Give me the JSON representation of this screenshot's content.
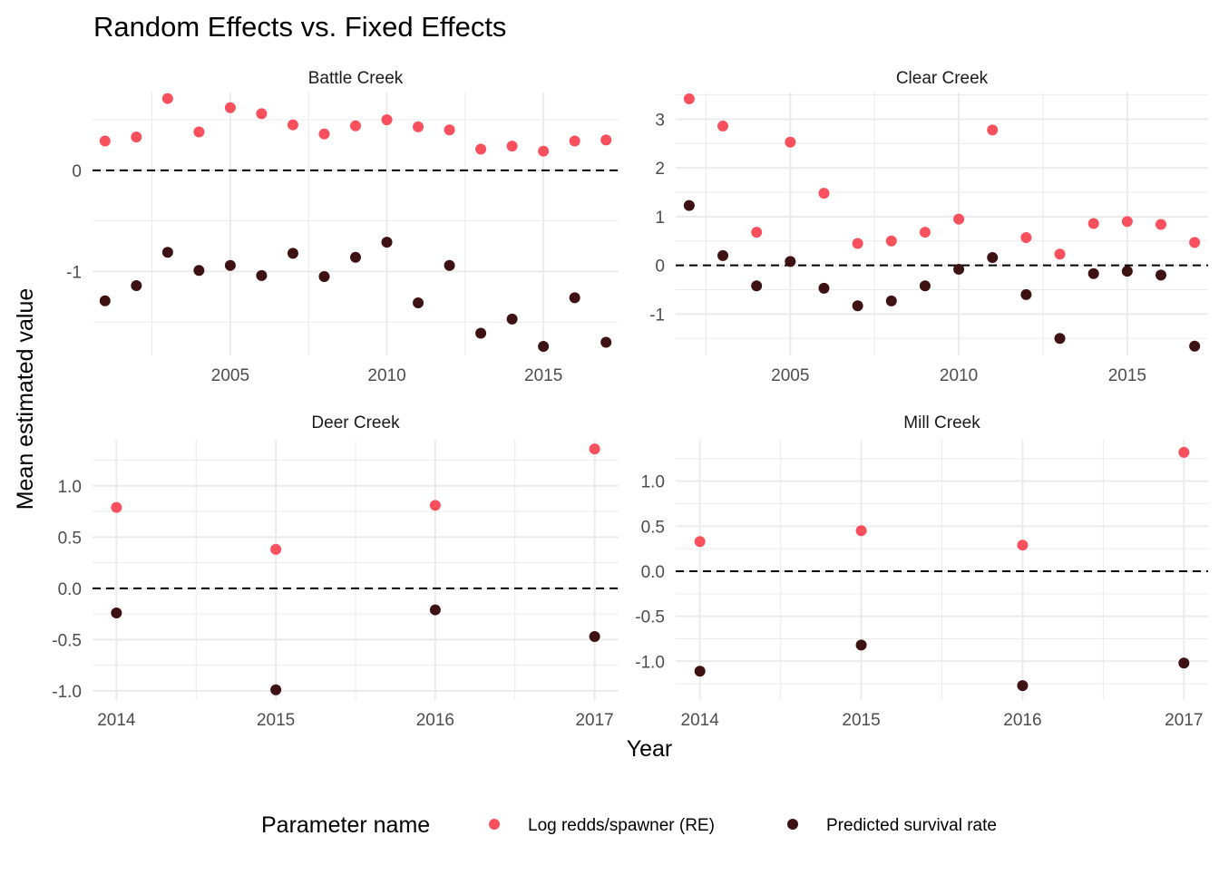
{
  "chart_data": {
    "type": "scatter",
    "title": "Random Effects vs. Fixed Effects",
    "xlabel": "Year",
    "ylabel": "Mean estimated value",
    "legend": {
      "title": "Parameter name",
      "position": "bottom",
      "entries": [
        {
          "name": "Log redds/spawner (RE)",
          "color": "#f8505d"
        },
        {
          "name": "Predicted survival rate",
          "color": "#3e1112"
        }
      ]
    },
    "reference_line": {
      "y": 0,
      "style": "dashed"
    },
    "panels": [
      {
        "name": "Battle Creek",
        "xlim": [
          2000.6,
          2017.4
        ],
        "ylim": [
          -1.83,
          0.77
        ],
        "xticks": [
          2005,
          2010,
          2015
        ],
        "yticks": [
          0,
          -1
        ],
        "series": [
          {
            "name": "Log redds/spawner (RE)",
            "x": [
              2001,
              2002,
              2003,
              2004,
              2005,
              2006,
              2007,
              2008,
              2009,
              2010,
              2011,
              2012,
              2013,
              2014,
              2015,
              2016,
              2017
            ],
            "y": [
              0.29,
              0.33,
              0.71,
              0.38,
              0.62,
              0.56,
              0.45,
              0.36,
              0.44,
              0.5,
              0.43,
              0.4,
              0.21,
              0.24,
              0.19,
              0.29,
              0.3
            ]
          },
          {
            "name": "Predicted survival rate",
            "x": [
              2001,
              2002,
              2003,
              2004,
              2005,
              2006,
              2007,
              2008,
              2009,
              2010,
              2011,
              2012,
              2013,
              2014,
              2015,
              2016,
              2017
            ],
            "y": [
              -1.29,
              -1.14,
              -0.81,
              -0.99,
              -0.94,
              -1.04,
              -0.82,
              -1.05,
              -0.86,
              -0.71,
              -1.31,
              -0.94,
              -1.61,
              -1.47,
              -1.74,
              -1.26,
              -1.7
            ]
          }
        ]
      },
      {
        "name": "Clear Creek",
        "xlim": [
          2001.6,
          2017.4
        ],
        "ylim": [
          -1.85,
          3.55
        ],
        "xticks": [
          2005,
          2010,
          2015
        ],
        "yticks": [
          3,
          2,
          1,
          0,
          -1
        ],
        "series": [
          {
            "name": "Log redds/spawner (RE)",
            "x": [
              2002,
              2003,
              2004,
              2005,
              2006,
              2007,
              2008,
              2009,
              2010,
              2011,
              2012,
              2013,
              2014,
              2015,
              2016,
              2017
            ],
            "y": [
              3.42,
              2.86,
              0.68,
              2.53,
              1.48,
              0.45,
              0.5,
              0.68,
              0.95,
              2.78,
              0.57,
              0.23,
              0.86,
              0.9,
              0.84,
              0.47
            ]
          },
          {
            "name": "Predicted survival rate",
            "x": [
              2002,
              2003,
              2004,
              2005,
              2006,
              2007,
              2008,
              2009,
              2010,
              2011,
              2012,
              2013,
              2014,
              2015,
              2016,
              2017
            ],
            "y": [
              1.23,
              0.2,
              -0.42,
              0.08,
              -0.47,
              -0.83,
              -0.73,
              -0.42,
              -0.08,
              0.16,
              -0.6,
              -1.5,
              -0.17,
              -0.12,
              -0.2,
              -1.66
            ]
          }
        ]
      },
      {
        "name": "Deer Creek",
        "xlim": [
          2013.85,
          2017.15
        ],
        "ylim": [
          -1.09,
          1.45
        ],
        "xticks": [
          2014,
          2015,
          2016,
          2017
        ],
        "yticks": [
          1.0,
          0.5,
          0.0,
          -0.5,
          -1.0
        ],
        "ytick_labels": [
          "1.0",
          "0.5",
          "0.0",
          "-0.5",
          "-1.0"
        ],
        "series": [
          {
            "name": "Log redds/spawner (RE)",
            "x": [
              2014,
              2015,
              2016,
              2017
            ],
            "y": [
              0.79,
              0.38,
              0.81,
              1.36
            ]
          },
          {
            "name": "Predicted survival rate",
            "x": [
              2014,
              2015,
              2016,
              2017
            ],
            "y": [
              -0.24,
              -0.99,
              -0.21,
              -0.47
            ]
          }
        ]
      },
      {
        "name": "Mill Creek",
        "xlim": [
          2013.85,
          2017.15
        ],
        "ylim": [
          -1.43,
          1.46
        ],
        "xticks": [
          2014,
          2015,
          2016,
          2017
        ],
        "yticks": [
          1.0,
          0.5,
          0.0,
          -0.5,
          -1.0
        ],
        "ytick_labels": [
          "1.0",
          "0.5",
          "0.0",
          "-0.5",
          "-1.0"
        ],
        "series": [
          {
            "name": "Log redds/spawner (RE)",
            "x": [
              2014,
              2015,
              2016,
              2017
            ],
            "y": [
              0.33,
              0.45,
              0.29,
              1.32
            ]
          },
          {
            "name": "Predicted survival rate",
            "x": [
              2014,
              2015,
              2016,
              2017
            ],
            "y": [
              -1.11,
              -0.82,
              -1.27,
              -1.02
            ]
          }
        ]
      }
    ]
  }
}
